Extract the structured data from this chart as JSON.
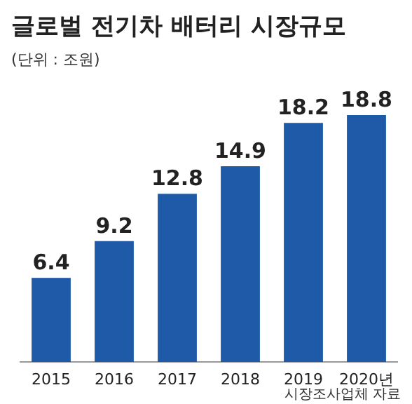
{
  "chart_data": {
    "type": "bar",
    "title": "글로벌 전기차 배터리 시장규모",
    "subtitle": "(단위 : 조원)",
    "categories": [
      "2015",
      "2016",
      "2017",
      "2018",
      "2019",
      "2020년"
    ],
    "values": [
      6.4,
      9.2,
      12.8,
      14.9,
      18.2,
      18.8
    ],
    "color": "#1f5aa8",
    "data_labels": true,
    "annotations": [
      "시장조사업체 자료"
    ]
  }
}
